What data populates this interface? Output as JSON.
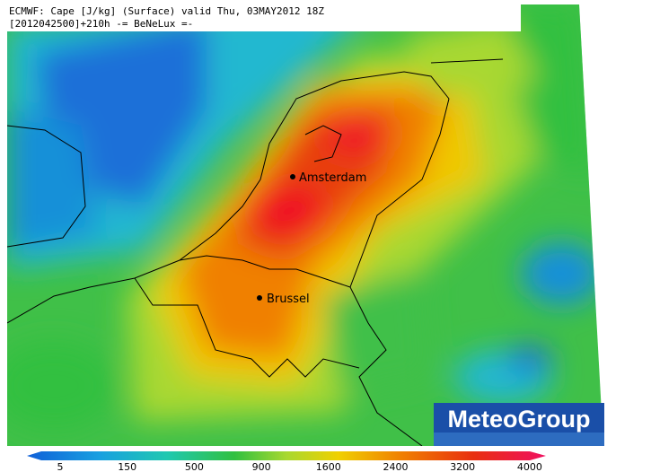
{
  "header": {
    "line1": "ECMWF: Cape [J/kg] (Surface) valid Thu, 03MAY2012 18Z",
    "line2": "[2012042500]+210h  -= BeNeLux =-"
  },
  "cities": [
    {
      "label": "Amsterdam"
    },
    {
      "label": "Brussel"
    }
  ],
  "logo": "MeteoGroup",
  "colorbar": {
    "ticks": [
      5,
      150,
      500,
      900,
      1600,
      2400,
      3200,
      4000
    ]
  }
}
